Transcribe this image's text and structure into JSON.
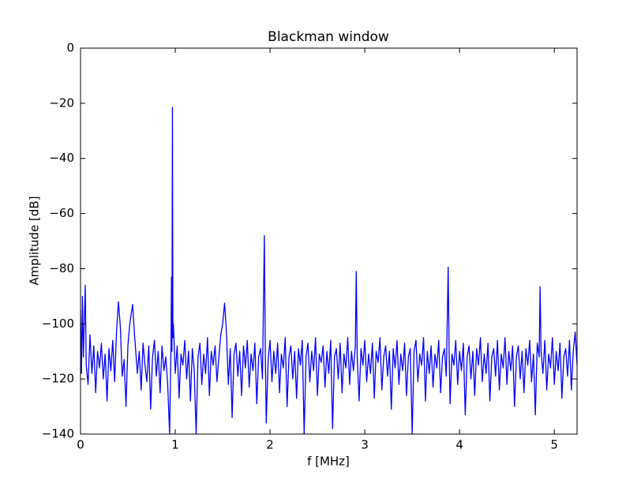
{
  "chart_data": {
    "type": "line",
    "title": "Blackman window",
    "xlabel": "f [MHz]",
    "ylabel": "Amplitude [dB]",
    "color": "#0000ff",
    "xlim": [
      0,
      5.24
    ],
    "ylim": [
      -140,
      0
    ],
    "xticks": [
      0,
      1,
      2,
      3,
      4,
      5
    ],
    "yticks": [
      0,
      {
        "value": -20,
        "label": "−20"
      },
      {
        "value": -40,
        "label": "−40"
      },
      {
        "value": -60,
        "label": "−60"
      },
      {
        "value": -80,
        "label": "−80"
      },
      {
        "value": -100,
        "label": "−100"
      },
      {
        "value": -120,
        "label": "−120"
      },
      {
        "value": -140,
        "label": "−140"
      }
    ],
    "grid": false,
    "x": [
      0,
      0.01,
      0.02,
      0.03,
      0.05,
      0.06,
      0.08,
      0.1,
      0.12,
      0.14,
      0.16,
      0.18,
      0.2,
      0.22,
      0.24,
      0.26,
      0.28,
      0.3,
      0.32,
      0.34,
      0.36,
      0.38,
      0.4,
      0.42,
      0.44,
      0.46,
      0.48,
      0.5,
      0.52,
      0.55,
      0.57,
      0.6,
      0.62,
      0.64,
      0.66,
      0.68,
      0.7,
      0.72,
      0.74,
      0.76,
      0.78,
      0.8,
      0.82,
      0.84,
      0.86,
      0.88,
      0.9,
      0.92,
      0.94,
      0.955,
      0.96,
      0.965,
      0.97,
      0.975,
      0.98,
      1,
      1.02,
      1.04,
      1.06,
      1.08,
      1.1,
      1.12,
      1.14,
      1.16,
      1.18,
      1.2,
      1.22,
      1.24,
      1.26,
      1.28,
      1.3,
      1.32,
      1.34,
      1.36,
      1.38,
      1.4,
      1.42,
      1.44,
      1.46,
      1.48,
      1.5,
      1.52,
      1.54,
      1.56,
      1.58,
      1.6,
      1.62,
      1.64,
      1.66,
      1.68,
      1.7,
      1.72,
      1.74,
      1.76,
      1.78,
      1.8,
      1.82,
      1.84,
      1.86,
      1.88,
      1.9,
      1.92,
      1.94,
      1.95,
      1.96,
      1.98,
      2,
      2.02,
      2.04,
      2.06,
      2.08,
      2.1,
      2.12,
      2.14,
      2.16,
      2.18,
      2.2,
      2.22,
      2.24,
      2.26,
      2.28,
      2.3,
      2.32,
      2.34,
      2.36,
      2.38,
      2.4,
      2.42,
      2.44,
      2.46,
      2.48,
      2.5,
      2.52,
      2.54,
      2.56,
      2.58,
      2.6,
      2.62,
      2.64,
      2.66,
      2.68,
      2.7,
      2.72,
      2.74,
      2.76,
      2.78,
      2.8,
      2.82,
      2.84,
      2.86,
      2.88,
      2.9,
      2.91,
      2.92,
      2.94,
      2.96,
      2.98,
      3,
      3.02,
      3.04,
      3.06,
      3.08,
      3.1,
      3.12,
      3.14,
      3.16,
      3.18,
      3.2,
      3.22,
      3.24,
      3.26,
      3.28,
      3.3,
      3.32,
      3.34,
      3.36,
      3.38,
      3.4,
      3.42,
      3.44,
      3.46,
      3.48,
      3.5,
      3.52,
      3.54,
      3.56,
      3.58,
      3.6,
      3.62,
      3.64,
      3.66,
      3.68,
      3.7,
      3.72,
      3.74,
      3.76,
      3.78,
      3.8,
      3.82,
      3.84,
      3.86,
      3.88,
      3.89,
      3.9,
      3.92,
      3.94,
      3.96,
      3.98,
      4,
      4.02,
      4.04,
      4.06,
      4.08,
      4.1,
      4.12,
      4.14,
      4.16,
      4.18,
      4.2,
      4.22,
      4.24,
      4.26,
      4.28,
      4.3,
      4.32,
      4.34,
      4.36,
      4.38,
      4.4,
      4.42,
      4.44,
      4.46,
      4.48,
      4.5,
      4.52,
      4.54,
      4.56,
      4.58,
      4.6,
      4.62,
      4.64,
      4.66,
      4.68,
      4.7,
      4.72,
      4.74,
      4.76,
      4.78,
      4.8,
      4.82,
      4.84,
      4.85,
      4.86,
      4.88,
      4.9,
      4.92,
      4.94,
      4.96,
      4.98,
      5,
      5.02,
      5.04,
      5.06,
      5.08,
      5.1,
      5.12,
      5.14,
      5.16,
      5.18,
      5.2,
      5.22,
      5.24
    ],
    "values": [
      -95,
      -118,
      -90,
      -112,
      -86,
      -115,
      -122,
      -104,
      -118,
      -108,
      -125,
      -110,
      -116,
      -107,
      -120,
      -111,
      -128,
      -109,
      -117,
      -106,
      -121,
      -103,
      -92,
      -101,
      -119,
      -113,
      -130,
      -108,
      -100,
      -93,
      -104,
      -118,
      -110,
      -124,
      -107,
      -115,
      -121,
      -108,
      -131,
      -112,
      -106,
      -119,
      -110,
      -125,
      -108,
      -117,
      -112,
      -122,
      -140,
      -108,
      -83,
      -110,
      -21.5,
      -105,
      -100,
      -118,
      -108,
      -127,
      -111,
      -115,
      -106,
      -120,
      -110,
      -128,
      -109,
      -117,
      -140,
      -112,
      -107,
      -122,
      -111,
      -118,
      -105,
      -126,
      -110,
      -115,
      -108,
      -121,
      -112,
      -104,
      -100,
      -92.5,
      -103,
      -122,
      -109,
      -134,
      -111,
      -107,
      -119,
      -110,
      -126,
      -108,
      -116,
      -106,
      -123,
      -111,
      -117,
      -107,
      -129,
      -112,
      -109,
      -120,
      -68,
      -110,
      -136,
      -113,
      -106,
      -121,
      -110,
      -118,
      -107,
      -125,
      -111,
      -116,
      -105,
      -130,
      -112,
      -108,
      -120,
      -110,
      -127,
      -109,
      -115,
      -106,
      -140,
      -112,
      -107,
      -121,
      -110,
      -117,
      -105,
      -126,
      -111,
      -114,
      -108,
      -123,
      -110,
      -118,
      -106,
      -138,
      -112,
      -109,
      -120,
      -107,
      -125,
      -111,
      -116,
      -105,
      -122,
      -110,
      -117,
      -108,
      -81,
      -112,
      -128,
      -109,
      -115,
      -106,
      -121,
      -111,
      -118,
      -107,
      -127,
      -110,
      -114,
      -105,
      -124,
      -112,
      -108,
      -119,
      -110,
      -131,
      -109,
      -116,
      -106,
      -122,
      -111,
      -117,
      -107,
      -126,
      -112,
      -109,
      -140,
      -110,
      -106,
      -121,
      -111,
      -115,
      -105,
      -128,
      -110,
      -118,
      -108,
      -123,
      -111,
      -116,
      -106,
      -125,
      -112,
      -109,
      -119,
      -79.5,
      -110,
      -129,
      -111,
      -115,
      -106,
      -122,
      -110,
      -117,
      -107,
      -133,
      -112,
      -108,
      -120,
      -110,
      -126,
      -109,
      -115,
      -105,
      -121,
      -111,
      -118,
      -107,
      -128,
      -112,
      -109,
      -119,
      -106,
      -124,
      -111,
      -116,
      -105,
      -122,
      -110,
      -117,
      -108,
      -130,
      -112,
      -108,
      -120,
      -110,
      -125,
      -109,
      -115,
      -106,
      -121,
      -111,
      -133,
      -107,
      -112,
      -86.5,
      -110,
      -118,
      -106,
      -124,
      -111,
      -116,
      -105,
      -122,
      -110,
      -117,
      -107,
      -127,
      -112,
      -109,
      -119,
      -106,
      -124,
      -110,
      -103,
      -115
    ]
  }
}
